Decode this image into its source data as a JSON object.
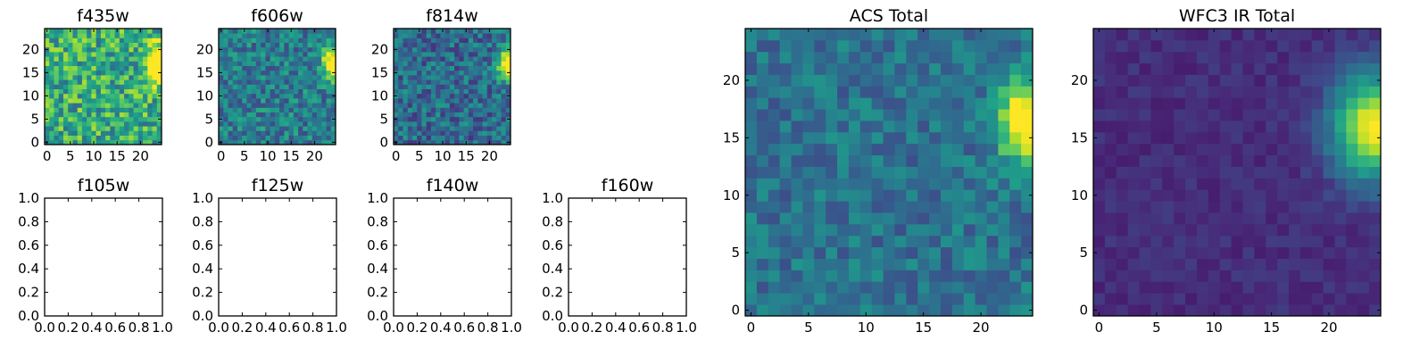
{
  "colormap": "viridis",
  "chart_data": [
    {
      "id": "f435w",
      "type": "heatmap",
      "title": "f435w",
      "grid": [
        25,
        25
      ],
      "xlim": [
        -0.5,
        24.5
      ],
      "ylim": [
        -0.5,
        24.5
      ],
      "xticks": [
        0,
        5,
        10,
        15,
        20
      ],
      "yticks": [
        0,
        5,
        10,
        15,
        20
      ],
      "empty": false,
      "source": {
        "x": 24,
        "y": 17,
        "sx": 1.6,
        "sy": 2.6,
        "amp": 0.95
      },
      "background": 0.62,
      "noise": 0.26,
      "seed": 11,
      "value_range": [
        0,
        1
      ]
    },
    {
      "id": "f606w",
      "type": "heatmap",
      "title": "f606w",
      "grid": [
        25,
        25
      ],
      "xlim": [
        -0.5,
        24.5
      ],
      "ylim": [
        -0.5,
        24.5
      ],
      "xticks": [
        0,
        5,
        10,
        15,
        20
      ],
      "yticks": [
        0,
        5,
        10,
        15,
        20
      ],
      "empty": false,
      "source": {
        "x": 24,
        "y": 17,
        "sx": 1.6,
        "sy": 2.4,
        "amp": 0.85
      },
      "background": 0.42,
      "noise": 0.2,
      "seed": 23,
      "value_range": [
        0,
        1
      ]
    },
    {
      "id": "f814w",
      "type": "heatmap",
      "title": "f814w",
      "grid": [
        25,
        25
      ],
      "xlim": [
        -0.5,
        24.5
      ],
      "ylim": [
        -0.5,
        24.5
      ],
      "xticks": [
        0,
        5,
        10,
        15,
        20
      ],
      "yticks": [
        0,
        5,
        10,
        15,
        20
      ],
      "empty": false,
      "source": {
        "x": 24,
        "y": 17,
        "sx": 1.6,
        "sy": 2.4,
        "amp": 0.9
      },
      "background": 0.35,
      "noise": 0.2,
      "seed": 37,
      "value_range": [
        0,
        1
      ]
    },
    {
      "id": "f105w",
      "type": "line",
      "title": "f105w",
      "xlim": [
        0,
        1
      ],
      "ylim": [
        0,
        1
      ],
      "xticks": [
        "0.0",
        "0.2",
        "0.4",
        "0.6",
        "0.8",
        "1.0"
      ],
      "yticks": [
        "0.0",
        "0.2",
        "0.4",
        "0.6",
        "0.8",
        "1.0"
      ],
      "empty": true
    },
    {
      "id": "f125w",
      "type": "line",
      "title": "f125w",
      "xlim": [
        0,
        1
      ],
      "ylim": [
        0,
        1
      ],
      "xticks": [
        "0.0",
        "0.2",
        "0.4",
        "0.6",
        "0.8",
        "1.0"
      ],
      "yticks": [
        "0.0",
        "0.2",
        "0.4",
        "0.6",
        "0.8",
        "1.0"
      ],
      "empty": true
    },
    {
      "id": "f140w",
      "type": "line",
      "title": "f140w",
      "xlim": [
        0,
        1
      ],
      "ylim": [
        0,
        1
      ],
      "xticks": [
        "0.0",
        "0.2",
        "0.4",
        "0.6",
        "0.8",
        "1.0"
      ],
      "yticks": [
        "0.0",
        "0.2",
        "0.4",
        "0.6",
        "0.8",
        "1.0"
      ],
      "empty": true
    },
    {
      "id": "f160w",
      "type": "line",
      "title": "f160w",
      "xlim": [
        0,
        1
      ],
      "ylim": [
        0,
        1
      ],
      "xticks": [
        "0.0",
        "0.2",
        "0.4",
        "0.6",
        "0.8",
        "1.0"
      ],
      "yticks": [
        "0.0",
        "0.2",
        "0.4",
        "0.6",
        "0.8",
        "1.0"
      ],
      "empty": true
    },
    {
      "id": "acs-total",
      "type": "heatmap",
      "title": "ACS Total",
      "grid": [
        25,
        25
      ],
      "xlim": [
        -0.5,
        24.5
      ],
      "ylim": [
        -0.5,
        24.5
      ],
      "xticks": [
        0,
        5,
        10,
        15,
        20
      ],
      "yticks": [
        0,
        5,
        10,
        15,
        20
      ],
      "empty": false,
      "source": {
        "x": 23.8,
        "y": 16.5,
        "sx": 1.5,
        "sy": 2.5,
        "amp": 0.75
      },
      "background": 0.38,
      "noise": 0.14,
      "seed": 51,
      "value_range": [
        0,
        1
      ]
    },
    {
      "id": "wfc3-ir-total",
      "type": "heatmap",
      "title": "WFC3 IR Total",
      "grid": [
        25,
        25
      ],
      "xlim": [
        -0.5,
        24.5
      ],
      "ylim": [
        -0.5,
        24.5
      ],
      "xticks": [
        0,
        5,
        10,
        15,
        20
      ],
      "yticks": [
        0,
        5,
        10,
        15,
        20
      ],
      "empty": false,
      "source": {
        "x": 24,
        "y": 16,
        "sx": 2.6,
        "sy": 3.2,
        "amp": 0.88
      },
      "background": 0.13,
      "noise": 0.05,
      "seed": 67,
      "value_range": [
        0,
        1
      ]
    }
  ]
}
